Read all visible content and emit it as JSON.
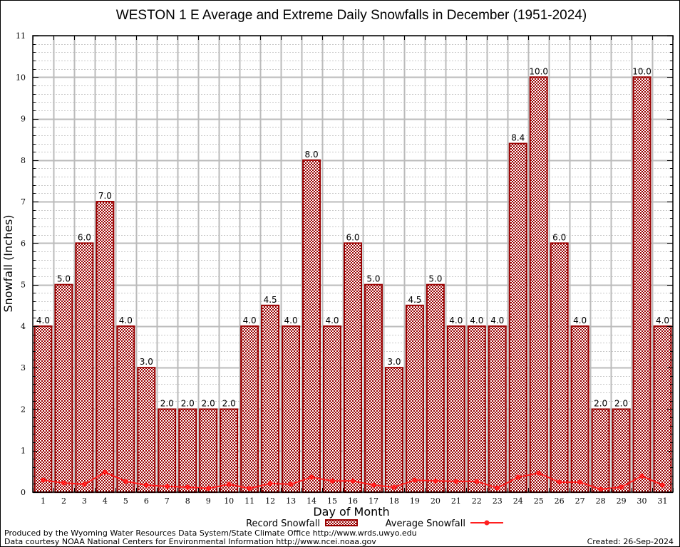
{
  "chart_data": {
    "type": "bar",
    "title": "WESTON 1 E Average and Extreme Daily Snowfalls in December (1951-2024)",
    "xlabel": "Day of Month",
    "ylabel": "Snowfall (Inches)",
    "ylim": [
      0,
      11
    ],
    "yticks": [
      "0",
      "1",
      "2",
      "3",
      "4",
      "5",
      "6",
      "7",
      "8",
      "9",
      "10",
      "11"
    ],
    "grid": true,
    "categories": [
      "1",
      "2",
      "3",
      "4",
      "5",
      "6",
      "7",
      "8",
      "9",
      "10",
      "11",
      "12",
      "13",
      "14",
      "15",
      "16",
      "17",
      "18",
      "19",
      "20",
      "21",
      "22",
      "23",
      "24",
      "25",
      "26",
      "27",
      "28",
      "29",
      "30",
      "31"
    ],
    "series": [
      {
        "name": "Record Snowfall",
        "type": "bar",
        "color": "#990000",
        "values": [
          4.0,
          5.0,
          6.0,
          7.0,
          4.0,
          3.0,
          2.0,
          2.0,
          2.0,
          2.0,
          4.0,
          4.5,
          4.0,
          8.0,
          4.0,
          6.0,
          5.0,
          3.0,
          4.5,
          5.0,
          4.0,
          4.0,
          4.0,
          8.4,
          10.0,
          6.0,
          4.0,
          2.0,
          2.0,
          10.0,
          4.0
        ],
        "labels": [
          "4.0",
          "5.0",
          "6.0",
          "7.0",
          "4.0",
          "3.0",
          "2.0",
          "2.0",
          "2.0",
          "2.0",
          "4.0",
          "4.5",
          "4.0",
          "8.0",
          "4.0",
          "6.0",
          "5.0",
          "3.0",
          "4.5",
          "5.0",
          "4.0",
          "4.0",
          "4.0",
          "8.4",
          "10.0",
          "6.0",
          "4.0",
          "2.0",
          "2.0",
          "10.0",
          "4.0"
        ]
      },
      {
        "name": "Average Snowfall",
        "type": "line",
        "color": "#ff2020",
        "values": [
          0.29,
          0.22,
          0.19,
          0.48,
          0.26,
          0.17,
          0.14,
          0.12,
          0.09,
          0.19,
          0.09,
          0.21,
          0.19,
          0.36,
          0.27,
          0.27,
          0.17,
          0.12,
          0.29,
          0.27,
          0.26,
          0.26,
          0.1,
          0.36,
          0.46,
          0.24,
          0.24,
          0.07,
          0.12,
          0.39,
          0.17
        ]
      }
    ],
    "legend": {
      "position": "bottom-center",
      "entries": [
        "Record Snowfall",
        "Average Snowfall"
      ]
    }
  },
  "footer": {
    "produced_by": "Produced by the Wyoming Water Resources Data System/State Climate Office http://www.wrds.uwyo.edu",
    "data_courtesy": "Data courtesy NOAA National Centers for Environmental Information http://www.ncei.noaa.gov",
    "created": "Created: 26-Sep-2024"
  }
}
